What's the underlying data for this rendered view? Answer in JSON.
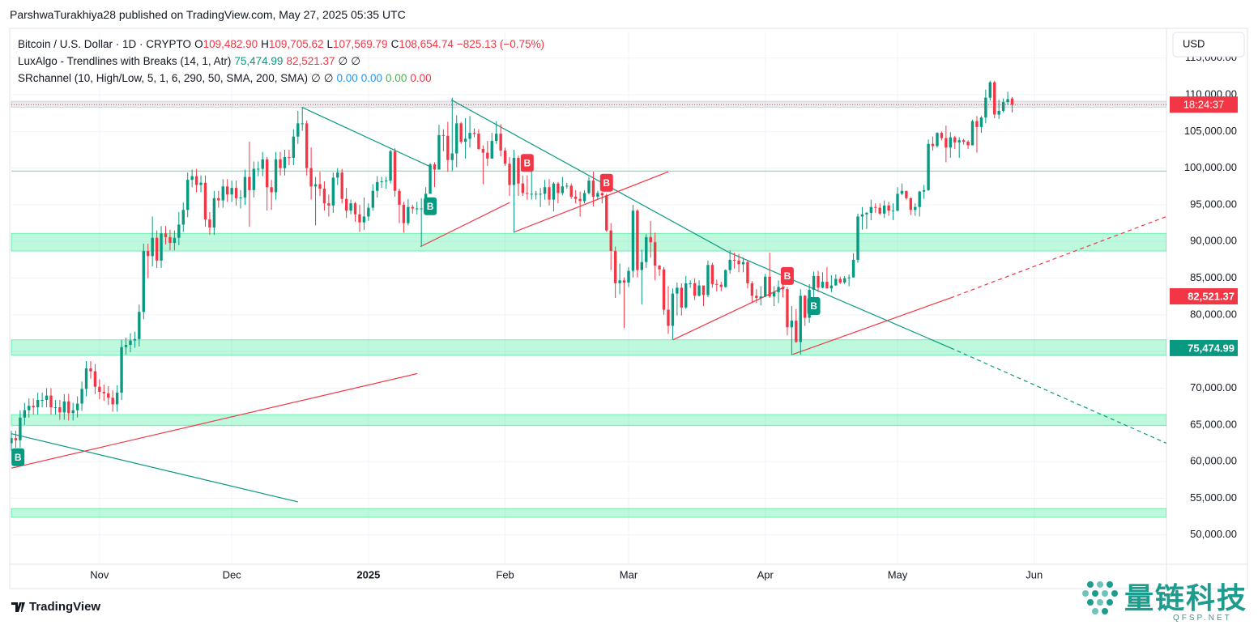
{
  "header": {
    "byline": "ParshwaTurakhiya28 published on TradingView.com, May 27, 2025 05:35 UTC"
  },
  "legend": {
    "symbol": "Bitcoin / U.S. Dollar · 1D · CRYPTO",
    "key_color": "#131722",
    "value_color": "#f23645",
    "ohlc": [
      {
        "key": "O",
        "value": "109,482.90"
      },
      {
        "key": "H",
        "value": "109,705.62"
      },
      {
        "key": "L",
        "value": "107,569.79"
      },
      {
        "key": "C",
        "value": "108,654.74"
      }
    ],
    "change": "−825.13 (−0.75%)",
    "indicators": [
      {
        "name": "LuxAlgo - Trendlines with Breaks (14, 1, Atr)",
        "values": [
          {
            "text": "75,474.99",
            "color": "#089981"
          },
          {
            "text": "82,521.37",
            "color": "#f23645"
          },
          {
            "text": "∅",
            "color": "#131722"
          },
          {
            "text": "∅",
            "color": "#131722"
          }
        ]
      },
      {
        "name": "SRchannel (10, High/Low, 5, 1, 6, 290, 50, SMA, 200, SMA)",
        "values": [
          {
            "text": "∅",
            "color": "#131722"
          },
          {
            "text": "∅",
            "color": "#131722"
          },
          {
            "text": "0.00",
            "color": "#2196f3"
          },
          {
            "text": "0.00",
            "color": "#2196f3"
          },
          {
            "text": "0.00",
            "color": "#4caf50"
          },
          {
            "text": "0.00",
            "color": "#f23645"
          }
        ]
      }
    ]
  },
  "footer": {
    "brand": "TradingView"
  },
  "watermark": {
    "name": "量链科技",
    "site": "QFSP.NET"
  },
  "chart_data": {
    "type": "candlestick",
    "currency": "USD",
    "countdown": "18:24:37",
    "up_color": "#089981",
    "down_color": "#f23645",
    "grid": true,
    "xlim": [
      0,
      262
    ],
    "ylim": [
      46000,
      118500
    ],
    "xticks": [
      {
        "value": 20,
        "label": "Nov"
      },
      {
        "value": 50,
        "label": "Dec"
      },
      {
        "value": 81,
        "label": "2025"
      },
      {
        "value": 112,
        "label": "Feb"
      },
      {
        "value": 140,
        "label": "Mar"
      },
      {
        "value": 171,
        "label": "Apr"
      },
      {
        "value": 201,
        "label": "May"
      },
      {
        "value": 232,
        "label": "Jun"
      }
    ],
    "yticks": [
      {
        "value": 50000,
        "label": "50,000.00"
      },
      {
        "value": 55000,
        "label": "55,000.00"
      },
      {
        "value": 60000,
        "label": "60,000.00"
      },
      {
        "value": 65000,
        "label": "65,000.00"
      },
      {
        "value": 70000,
        "label": "70,000.00"
      },
      {
        "value": 75000,
        "label": "75,000.00"
      },
      {
        "value": 80000,
        "label": "80,000.00"
      },
      {
        "value": 85000,
        "label": "85,000.00"
      },
      {
        "value": 90000,
        "label": "90,000.00"
      },
      {
        "value": 95000,
        "label": "95,000.00"
      },
      {
        "value": 100000,
        "label": "100,000.00"
      },
      {
        "value": 105000,
        "label": "105,000.00"
      },
      {
        "value": 110000,
        "label": "110,000.00"
      },
      {
        "value": 115000,
        "label": "115,000.00"
      }
    ],
    "open": [
      62500,
      63200,
      62900,
      66000,
      67000,
      67600,
      67400,
      68400,
      68400,
      69000,
      67400,
      67400,
      66700,
      68200,
      66600,
      67000,
      67900,
      69900,
      72700,
      72300,
      70200,
      69500,
      69300,
      68700,
      67800,
      69400,
      75600,
      75900,
      76500,
      76700,
      80400,
      88700,
      88000,
      90500,
      87400,
      91100,
      90600,
      89800,
      90500,
      92300,
      94300,
      98400,
      98900,
      97700,
      98000,
      93000,
      91900,
      95900,
      95600,
      97500,
      96400,
      97300,
      95900,
      96000,
      98800,
      97000,
      99900,
      99900,
      101200,
      97400,
      96700,
      101200,
      100000,
      101500,
      101400,
      104300,
      106100,
      106100,
      100000,
      97500,
      97800,
      97200,
      95200,
      94900,
      98700,
      99400,
      95800,
      94200,
      95200,
      93700,
      92600,
      93400,
      94600,
      96900,
      98100,
      98200,
      98300,
      102300,
      96900,
      95000,
      92500,
      94700,
      94500,
      94500,
      94500,
      96500,
      100500,
      99800,
      104500,
      104400,
      101100,
      102000,
      106100,
      103600,
      104000,
      104800,
      104700,
      102600,
      102100,
      101300,
      103700,
      104700,
      102400,
      100600,
      97700,
      101400,
      97900,
      96600,
      96500,
      96500,
      96500,
      96500,
      97400,
      95700,
      97900,
      96600,
      97500,
      97600,
      96100,
      95800,
      95500,
      96600,
      98300,
      96100,
      96600,
      96300,
      91500,
      88700,
      84300,
      84700,
      84400,
      86000,
      94200,
      86100,
      87200,
      90600,
      89900,
      86700,
      86200,
      80700,
      78500,
      82900,
      83700,
      81000,
      84300,
      84300,
      82600,
      84000,
      82700,
      86800,
      84200,
      84100,
      83800,
      86100,
      87500,
      87400,
      86900,
      87200,
      84300,
      82600,
      82300,
      82500,
      85200,
      82500,
      83100,
      83800,
      83500,
      78300,
      79200,
      76300,
      82600,
      79600,
      83400,
      85300,
      83700,
      84500,
      83600,
      84000,
      84900,
      84400,
      85000,
      85100,
      87500,
      93400,
      93700,
      93900,
      94700,
      94600,
      93800,
      94900,
      94200,
      94200,
      96500,
      96900,
      95900,
      94300,
      94700,
      96800,
      97000,
      103300,
      103000,
      104800,
      104100,
      102800,
      104200,
      103500,
      103800,
      103600,
      103100,
      106400,
      105600,
      106900,
      109600,
      111700,
      107300,
      107800,
      109000,
      109482.9
    ],
    "high": [
      64200,
      64200,
      67000,
      68000,
      68600,
      68600,
      69400,
      69400,
      70000,
      70000,
      68400,
      68400,
      69200,
      69200,
      68000,
      68900,
      70900,
      73700,
      73700,
      73300,
      71200,
      70500,
      70300,
      69700,
      70400,
      76600,
      76900,
      77500,
      77700,
      81400,
      89700,
      89700,
      93400,
      91500,
      92100,
      92100,
      91600,
      91500,
      94000,
      95300,
      99400,
      99800,
      99900,
      99000,
      99000,
      94000,
      96900,
      96900,
      98500,
      98500,
      98300,
      98300,
      97000,
      99800,
      103600,
      100900,
      100900,
      102200,
      101500,
      98400,
      102200,
      102200,
      102500,
      102500,
      105300,
      107800,
      108300,
      106500,
      102800,
      98800,
      99500,
      98200,
      96400,
      99400,
      100000,
      99900,
      97300,
      95700,
      95400,
      95000,
      96000,
      95200,
      97800,
      98900,
      98800,
      98800,
      102500,
      102700,
      97200,
      95400,
      95800,
      95000,
      95400,
      95900,
      97400,
      100700,
      100800,
      105900,
      105300,
      106300,
      109600,
      107200,
      106300,
      106800,
      107100,
      105400,
      105300,
      103100,
      103700,
      104800,
      106400,
      106000,
      102800,
      101500,
      102500,
      101700,
      99000,
      99000,
      100100,
      96900,
      97300,
      98400,
      98500,
      98100,
      98100,
      98800,
      98000,
      97900,
      97000,
      96800,
      97000,
      98800,
      99500,
      96900,
      96700,
      96500,
      92500,
      89300,
      87000,
      85100,
      86500,
      95000,
      94400,
      88900,
      91000,
      92800,
      91200,
      86800,
      86500,
      83900,
      83600,
      84400,
      84300,
      85300,
      84700,
      85000,
      84700,
      84000,
      87400,
      87100,
      84800,
      84500,
      86200,
      88800,
      88500,
      88300,
      87800,
      87500,
      84600,
      83500,
      83900,
      85600,
      88500,
      83900,
      84700,
      84200,
      83800,
      81200,
      80800,
      83500,
      82700,
      84200,
      85900,
      86000,
      85800,
      86500,
      85400,
      85500,
      85200,
      85300,
      85500,
      88400,
      93800,
      94700,
      94000,
      95700,
      95200,
      95200,
      95600,
      95400,
      95200,
      97400,
      97900,
      96900,
      96000,
      95200,
      96900,
      97700,
      103900,
      104300,
      104900,
      105000,
      105800,
      104900,
      104400,
      104200,
      104000,
      103800,
      106600,
      107100,
      107100,
      110700,
      111900,
      111900,
      109300,
      109500,
      110400,
      109705.62
    ],
    "low": [
      61500,
      61900,
      61900,
      65000,
      66000,
      66400,
      66400,
      67400,
      67400,
      66400,
      66400,
      65700,
      65700,
      65600,
      65600,
      66000,
      66900,
      68900,
      71300,
      69200,
      68500,
      68300,
      67700,
      66800,
      66800,
      68400,
      74600,
      74900,
      75500,
      75700,
      79400,
      85000,
      86600,
      86400,
      86400,
      89600,
      88800,
      88800,
      89500,
      91300,
      93300,
      97400,
      96700,
      96700,
      92000,
      90900,
      90900,
      94600,
      94600,
      95400,
      95400,
      94900,
      94500,
      95000,
      92000,
      96000,
      98900,
      98900,
      94200,
      94300,
      95700,
      99000,
      99000,
      100400,
      100400,
      103300,
      105100,
      99000,
      95700,
      92200,
      96200,
      94200,
      93400,
      93900,
      97700,
      95200,
      93200,
      93700,
      92700,
      91300,
      91600,
      92800,
      94200,
      96000,
      97300,
      97200,
      97900,
      96100,
      92500,
      91200,
      92200,
      93800,
      93700,
      89300,
      94300,
      96500,
      97400,
      99800,
      102300,
      99500,
      99600,
      100100,
      103300,
      101300,
      102800,
      104200,
      102500,
      97800,
      100300,
      101300,
      103300,
      101600,
      100300,
      96200,
      91200,
      96200,
      96200,
      95700,
      95700,
      95700,
      94700,
      95700,
      94900,
      94100,
      95200,
      96300,
      97200,
      95800,
      95200,
      93400,
      95200,
      96400,
      94800,
      95800,
      95200,
      91300,
      86100,
      82300,
      82800,
      78200,
      83800,
      85100,
      85100,
      81400,
      86400,
      87800,
      84700,
      85300,
      80000,
      77400,
      76600,
      79900,
      79900,
      80800,
      83700,
      82000,
      82500,
      81200,
      82400,
      83700,
      83200,
      83200,
      83700,
      85600,
      86300,
      85800,
      85800,
      83600,
      81600,
      81600,
      81300,
      82400,
      82300,
      81200,
      81600,
      82400,
      77200,
      74500,
      76200,
      74600,
      78500,
      78900,
      82200,
      83100,
      83600,
      83600,
      83100,
      84000,
      84200,
      84200,
      83900,
      85100,
      87100,
      91600,
      91700,
      92900,
      93900,
      93600,
      93200,
      93500,
      92900,
      94100,
      96300,
      95700,
      93600,
      93500,
      93400,
      95800,
      96900,
      102400,
      102800,
      103800,
      100800,
      101400,
      102600,
      101400,
      103200,
      102600,
      103100,
      102100,
      104800,
      106100,
      109200,
      106800,
      106700,
      107600,
      108600,
      107569.79
    ],
    "close": [
      63200,
      62900,
      66000,
      67000,
      67600,
      67400,
      68400,
      68400,
      69000,
      67400,
      67400,
      66700,
      68200,
      66600,
      67000,
      67900,
      69900,
      72700,
      72300,
      70200,
      69500,
      69300,
      68700,
      67800,
      69400,
      75600,
      75900,
      76500,
      76700,
      80400,
      88700,
      88000,
      90500,
      87400,
      91100,
      90600,
      89800,
      90500,
      92300,
      94300,
      98400,
      98900,
      97700,
      98000,
      93000,
      91900,
      95900,
      95600,
      97500,
      96400,
      97300,
      95900,
      96000,
      98800,
      97000,
      99900,
      99900,
      101200,
      97400,
      96700,
      101200,
      100000,
      101500,
      101400,
      104300,
      106100,
      106100,
      100000,
      97500,
      97800,
      97200,
      95200,
      94900,
      98700,
      99400,
      95800,
      94200,
      95200,
      93700,
      92600,
      93400,
      94600,
      96900,
      98100,
      98200,
      98300,
      102300,
      96900,
      95000,
      92500,
      94700,
      94500,
      94500,
      94500,
      96500,
      100500,
      99800,
      104500,
      104400,
      101100,
      102000,
      106100,
      103600,
      104000,
      104800,
      104700,
      102600,
      102100,
      101300,
      103700,
      104700,
      102400,
      100600,
      97700,
      101400,
      97900,
      96600,
      96500,
      96500,
      96500,
      96500,
      97400,
      95700,
      97900,
      96600,
      97500,
      97600,
      96100,
      95800,
      95500,
      96600,
      98300,
      96100,
      96600,
      96300,
      91500,
      88700,
      84300,
      84700,
      84400,
      86000,
      94200,
      86100,
      87200,
      90600,
      89900,
      86700,
      86200,
      80700,
      78500,
      82900,
      83700,
      81000,
      84300,
      84300,
      82600,
      84000,
      82700,
      86800,
      84200,
      84100,
      83800,
      86100,
      87500,
      87400,
      86900,
      87200,
      84300,
      82600,
      82300,
      82500,
      85200,
      82500,
      83100,
      83800,
      83500,
      78300,
      79200,
      76300,
      82600,
      79600,
      83400,
      85300,
      83700,
      84500,
      83600,
      84000,
      84900,
      84400,
      85000,
      85100,
      87500,
      93400,
      93700,
      93900,
      94700,
      94600,
      93800,
      94900,
      94200,
      94200,
      96500,
      96900,
      95900,
      94300,
      94700,
      96800,
      97000,
      103300,
      103000,
      104800,
      104100,
      102800,
      104200,
      103500,
      103800,
      103600,
      103100,
      106400,
      105600,
      106900,
      109600,
      111700,
      107300,
      107800,
      109000,
      109400,
      108654.74
    ],
    "zones": [
      {
        "range": [
          108300,
          109100
        ],
        "color": "#b2b5be"
      },
      {
        "range": [
          88700,
          91100
        ],
        "color": "#00e676"
      },
      {
        "range": [
          74500,
          76600
        ],
        "color": "#00e676"
      },
      {
        "range": [
          64900,
          66400
        ],
        "color": "#00e676"
      },
      {
        "range": [
          52400,
          53600
        ],
        "color": "#00e676"
      }
    ],
    "levels": [
      {
        "value": 99600,
        "color": "#69d99b"
      }
    ],
    "trendlines": [
      {
        "x": [
          0,
          65
        ],
        "y": [
          63800,
          54500
        ],
        "color": "#089981",
        "dash": false
      },
      {
        "x": [
          65.9,
          95
        ],
        "y": [
          108300,
          100200
        ],
        "color": "#089981",
        "dash": false
      },
      {
        "x": [
          99.8,
          162.8
        ],
        "y": [
          109300,
          88500
        ],
        "color": "#089981",
        "dash": false
      },
      {
        "x": [
          162.8,
          213
        ],
        "y": [
          88500,
          75500
        ],
        "color": "#089981",
        "dash": false
      },
      {
        "x": [
          213,
          262
        ],
        "y": [
          75500,
          62500
        ],
        "color": "#089981",
        "dash": true
      },
      {
        "x": [
          0,
          92.1
        ],
        "y": [
          59100,
          72000
        ],
        "color": "#f23645",
        "dash": false
      },
      {
        "x": [
          92.8,
          113
        ],
        "y": [
          89300,
          95300
        ],
        "color": "#f23645",
        "dash": false
      },
      {
        "x": [
          114.1,
          149
        ],
        "y": [
          91300,
          99500
        ],
        "color": "#f23645",
        "dash": false
      },
      {
        "x": [
          150.1,
          175.4
        ],
        "y": [
          76600,
          83800
        ],
        "color": "#f23645",
        "dash": false
      },
      {
        "x": [
          177.2,
          213
        ],
        "y": [
          74600,
          82300
        ],
        "color": "#f23645",
        "dash": false
      },
      {
        "x": [
          213,
          262
        ],
        "y": [
          82300,
          93400
        ],
        "color": "#f23645",
        "dash": true
      }
    ],
    "signals": [
      {
        "x": 1.5,
        "y": 60600,
        "label": "B",
        "color": "#089981"
      },
      {
        "x": 95,
        "y": 94800,
        "label": "B",
        "color": "#089981"
      },
      {
        "x": 117,
        "y": 100700,
        "label": "B",
        "color": "#f23645"
      },
      {
        "x": 135,
        "y": 98000,
        "label": "B",
        "color": "#f23645"
      },
      {
        "x": 176,
        "y": 85300,
        "label": "B",
        "color": "#f23645"
      },
      {
        "x": 182,
        "y": 81200,
        "label": "B",
        "color": "#089981"
      }
    ],
    "price_labels": [
      {
        "value": 82521.37,
        "label": "82,521.37",
        "color": "#f23645"
      },
      {
        "value": 75474.99,
        "label": "75,474.99",
        "color": "#089981"
      }
    ]
  }
}
